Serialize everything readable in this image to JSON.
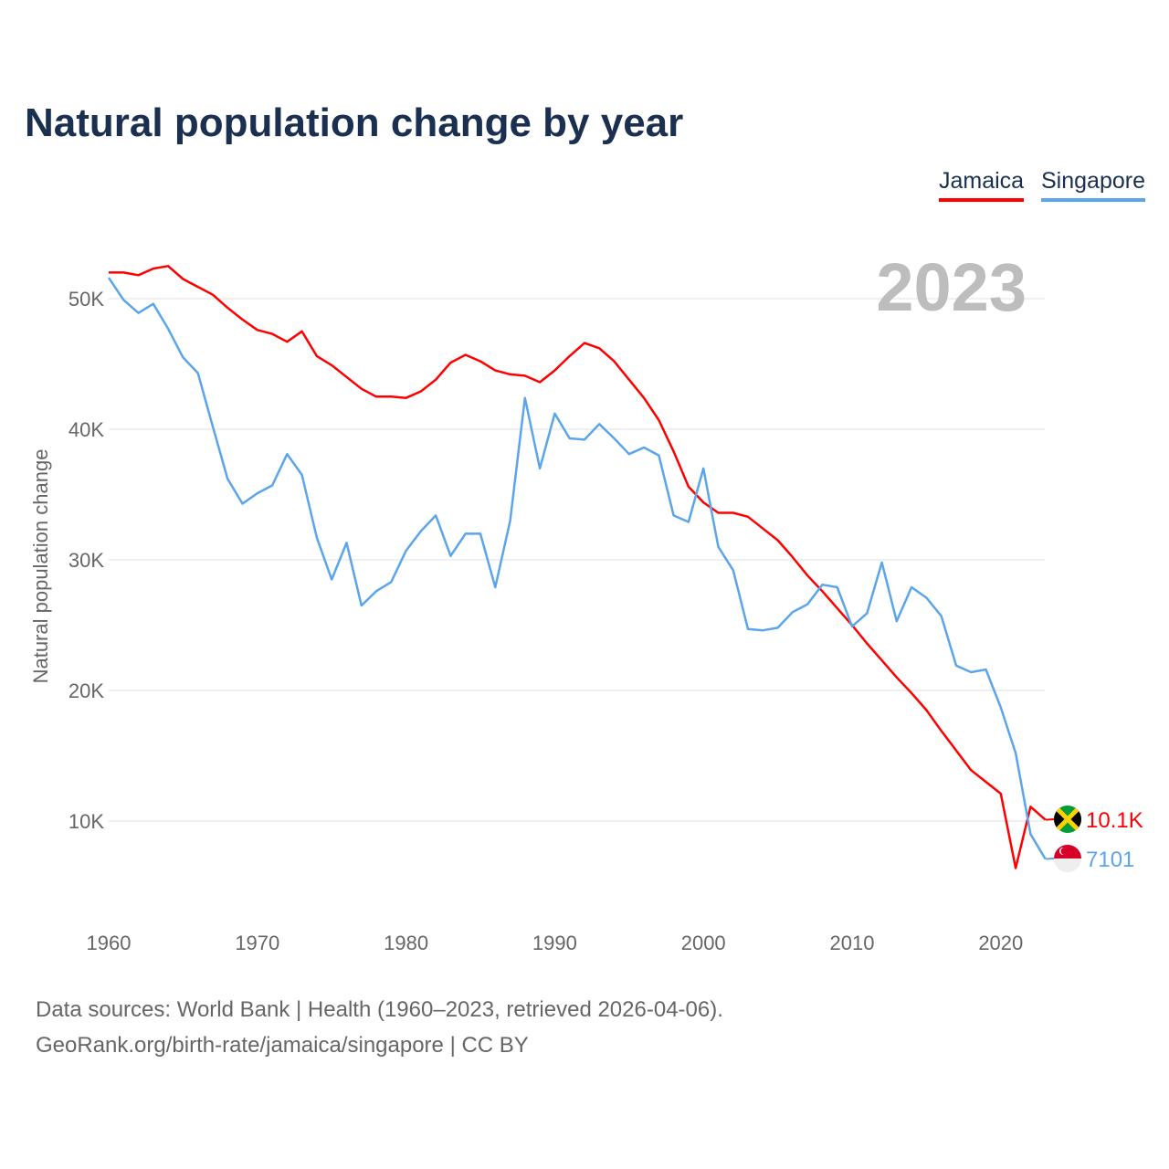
{
  "title": "Natural population change by year",
  "footer": {
    "line1": "Data sources: World Bank | Health (1960–2023, retrieved 2026-04-06).",
    "line2": "GeoRank.org/birth-rate/jamaica/singapore | CC BY"
  },
  "chart_data": {
    "type": "line",
    "title": "Natural population change by year",
    "xlabel": "",
    "ylabel": "Natural population change",
    "year_label": "2023",
    "xlim": [
      1960,
      2023
    ],
    "ylim": [
      0,
      52.5
    ],
    "x_ticks": [
      "1960",
      "1970",
      "1980",
      "1990",
      "2000",
      "2010",
      "2020"
    ],
    "y_ticks": [
      {
        "v": 10,
        "label": "10K"
      },
      {
        "v": 20,
        "label": "20K"
      },
      {
        "v": 30,
        "label": "30K"
      },
      {
        "v": 40,
        "label": "40K"
      },
      {
        "v": 50,
        "label": "50K"
      }
    ],
    "grid": true,
    "legend_position": "top-right",
    "units": "thousands",
    "series": [
      {
        "name": "Jamaica",
        "color": "#ff0000",
        "icon": "jamaica-flag-icon",
        "end_label": "10.1K",
        "values": [
          52.0,
          52.0,
          51.8,
          52.3,
          52.5,
          51.5,
          50.9,
          50.3,
          49.3,
          48.4,
          47.6,
          47.3,
          46.7,
          47.5,
          45.6,
          44.9,
          44.0,
          43.1,
          42.5,
          42.5,
          42.4,
          42.9,
          43.8,
          45.1,
          45.7,
          45.2,
          44.5,
          44.2,
          44.1,
          43.6,
          44.5,
          45.6,
          46.6,
          46.2,
          45.2,
          43.8,
          42.4,
          40.7,
          38.3,
          35.6,
          34.4,
          33.6,
          33.6,
          33.3,
          32.4,
          31.5,
          30.2,
          28.8,
          27.6,
          26.3,
          25.0,
          23.6,
          22.3,
          21.0,
          19.8,
          18.5,
          16.9,
          15.4,
          13.9,
          13.0,
          12.1,
          6.4,
          11.1,
          10.1
        ]
      },
      {
        "name": "Singapore",
        "color": "#5aa5eb",
        "icon": "singapore-flag-icon",
        "end_label": "7101",
        "values": [
          51.6,
          49.9,
          48.9,
          49.6,
          47.7,
          45.5,
          44.3,
          40.2,
          36.2,
          34.3,
          35.1,
          35.7,
          38.1,
          36.5,
          31.7,
          28.5,
          31.3,
          26.5,
          27.6,
          28.3,
          30.7,
          32.2,
          33.4,
          30.3,
          32.0,
          32.0,
          27.9,
          33.0,
          42.4,
          37.0,
          41.2,
          39.3,
          39.2,
          40.4,
          39.3,
          38.1,
          38.6,
          38.0,
          33.4,
          32.9,
          37.0,
          31.0,
          29.2,
          24.7,
          24.6,
          24.8,
          26.0,
          26.6,
          28.1,
          27.9,
          24.9,
          25.9,
          29.8,
          25.3,
          27.9,
          27.1,
          25.7,
          21.9,
          21.4,
          21.6,
          18.7,
          15.2,
          9.0,
          7.1
        ]
      }
    ]
  }
}
